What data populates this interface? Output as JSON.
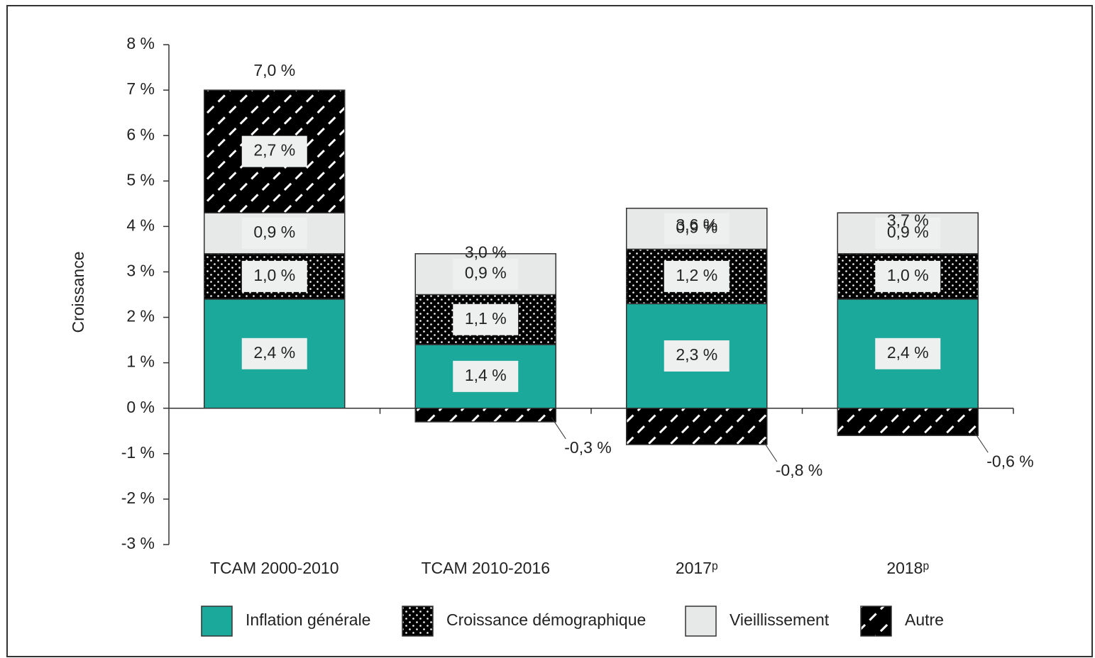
{
  "chart_data": {
    "type": "stacked_bar",
    "y_label": "Croissance",
    "categories": [
      "TCAM 2000-2010",
      "TCAM 2010-2016",
      "2017ᵖ",
      "2018ᵖ"
    ],
    "series": [
      {
        "name": "Inflation générale",
        "color": "#1aa99a",
        "pattern": "solid",
        "values": [
          2.4,
          1.4,
          2.3,
          2.4
        ],
        "value_labels": [
          "2,4 %",
          "1,4 %",
          "2,3 %",
          "2,4 %"
        ]
      },
      {
        "name": "Croissance démographique",
        "color": "#1f5a4f",
        "pattern": "dots",
        "values": [
          1.0,
          1.1,
          1.2,
          1.0
        ],
        "value_labels": [
          "1,0 %",
          "1,1 %",
          "1,2 %",
          "1,0 %"
        ]
      },
      {
        "name": "Vieillissement",
        "color": "#e6e9e8",
        "pattern": "solid",
        "values": [
          0.9,
          0.9,
          0.9,
          0.9
        ],
        "value_labels": [
          "0,9 %",
          "0,9 %",
          "0,9 %",
          "0,9 %"
        ]
      },
      {
        "name": "Autre",
        "color": "#1aa99a",
        "pattern": "hatch",
        "values": [
          2.7,
          -0.3,
          -0.8,
          -0.6
        ],
        "value_labels": [
          "2,7 %",
          "-0,3 %",
          "-0,8 %",
          "-0,6 %"
        ]
      }
    ],
    "totals": [
      7.0,
      3.0,
      3.6,
      3.7
    ],
    "total_labels": [
      "7,0 %",
      "3,0 %",
      "3,6 %",
      "3,7 %"
    ],
    "ylim": [
      -3,
      8
    ],
    "yticks": [
      {
        "value": -3,
        "label": "-3 %"
      },
      {
        "value": -2,
        "label": "-2 %"
      },
      {
        "value": -1,
        "label": "-1 %"
      },
      {
        "value": 0,
        "label": "0 %"
      },
      {
        "value": 1,
        "label": "1 %"
      },
      {
        "value": 2,
        "label": "2 %"
      },
      {
        "value": 3,
        "label": "3 %"
      },
      {
        "value": 4,
        "label": "4 %"
      },
      {
        "value": 5,
        "label": "5 %"
      },
      {
        "value": 6,
        "label": "6 %"
      },
      {
        "value": 7,
        "label": "7 %"
      },
      {
        "value": 8,
        "label": "8 %"
      }
    ],
    "legend": "bottom"
  }
}
